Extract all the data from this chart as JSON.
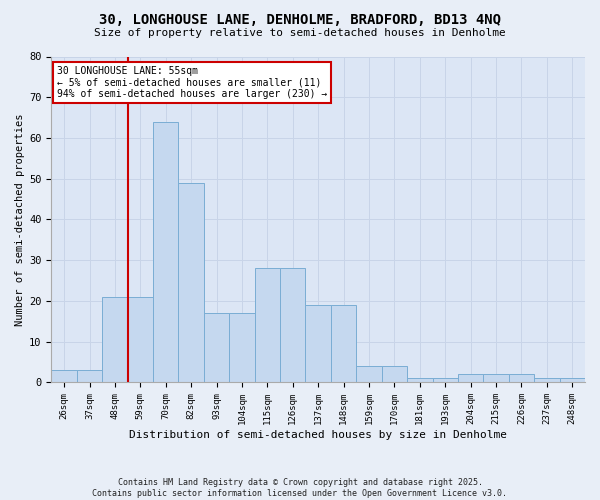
{
  "title": "30, LONGHOUSE LANE, DENHOLME, BRADFORD, BD13 4NQ",
  "subtitle": "Size of property relative to semi-detached houses in Denholme",
  "xlabel": "Distribution of semi-detached houses by size in Denholme",
  "ylabel": "Number of semi-detached properties",
  "bar_labels": [
    "26sqm",
    "37sqm",
    "48sqm",
    "59sqm",
    "70sqm",
    "82sqm",
    "93sqm",
    "104sqm",
    "115sqm",
    "126sqm",
    "137sqm",
    "148sqm",
    "159sqm",
    "170sqm",
    "181sqm",
    "193sqm",
    "204sqm",
    "215sqm",
    "226sqm",
    "237sqm",
    "248sqm"
  ],
  "bar_values": [
    3,
    3,
    21,
    21,
    64,
    49,
    17,
    17,
    28,
    28,
    19,
    19,
    4,
    4,
    1,
    1,
    2,
    2,
    2,
    1,
    1
  ],
  "bar_color": "#c5d8ef",
  "bar_edge_color": "#7aadd4",
  "annotation_text": "30 LONGHOUSE LANE: 55sqm\n← 5% of semi-detached houses are smaller (11)\n94% of semi-detached houses are larger (230) →",
  "vline_x": 3.0,
  "vline_color": "#cc0000",
  "annotation_box_color": "#cc0000",
  "ylim": [
    0,
    80
  ],
  "yticks": [
    0,
    10,
    20,
    30,
    40,
    50,
    60,
    70,
    80
  ],
  "footer": "Contains HM Land Registry data © Crown copyright and database right 2025.\nContains public sector information licensed under the Open Government Licence v3.0.",
  "background_color": "#e8eef7",
  "plot_background": "#dce6f5",
  "grid_color": "#c8d4e8"
}
